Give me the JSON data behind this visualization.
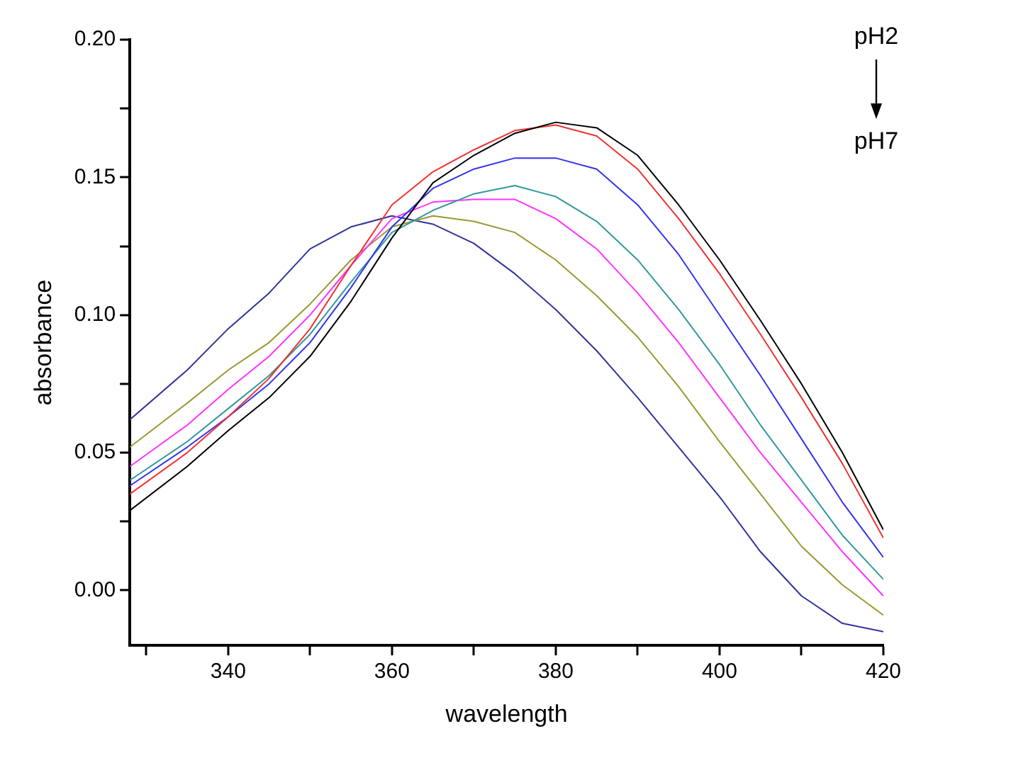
{
  "chart_data": {
    "type": "line",
    "xlabel": "wavelength",
    "ylabel": "absorbance",
    "annotations": [
      "pH2",
      "pH7"
    ],
    "x": [
      328,
      335,
      340,
      345,
      350,
      355,
      360,
      365,
      370,
      375,
      380,
      385,
      390,
      395,
      400,
      405,
      410,
      415,
      420
    ],
    "xlim": [
      328,
      420
    ],
    "xticks": [
      {
        "value": 330,
        "label": null
      },
      340,
      {
        "value": 350,
        "label": null
      },
      360,
      {
        "value": 370,
        "label": null
      },
      380,
      {
        "value": 390,
        "label": null
      },
      400,
      {
        "value": 410,
        "label": null
      },
      420
    ],
    "ylim": [
      -0.02,
      0.2
    ],
    "yticks": [
      {
        "value": 0,
        "label": "0.00"
      },
      {
        "value": 0.025,
        "label": null
      },
      {
        "value": 0.05,
        "label": "0.05"
      },
      {
        "value": 0.075,
        "label": null
      },
      {
        "value": 0.1,
        "label": "0.10"
      },
      {
        "value": 0.125,
        "label": null
      },
      {
        "value": 0.15,
        "label": "0.15"
      },
      {
        "value": 0.175,
        "label": null
      },
      {
        "value": 0.2,
        "label": "0.20"
      }
    ],
    "grid": false,
    "legend": false,
    "marker": "none",
    "line_style": "solid",
    "series": [
      {
        "color": "#000000",
        "values": [
          0.029,
          0.045,
          0.058,
          0.07,
          0.085,
          0.105,
          0.128,
          0.148,
          0.158,
          0.166,
          0.17,
          0.168,
          0.158,
          0.14,
          0.12,
          0.098,
          0.075,
          0.05,
          0.022
        ]
      },
      {
        "color": "#ee3333",
        "values": [
          0.035,
          0.05,
          0.063,
          0.077,
          0.095,
          0.118,
          0.14,
          0.152,
          0.16,
          0.167,
          0.169,
          0.165,
          0.153,
          0.135,
          0.115,
          0.093,
          0.07,
          0.046,
          0.019
        ]
      },
      {
        "color": "#3333ee",
        "values": [
          0.038,
          0.052,
          0.063,
          0.075,
          0.09,
          0.11,
          0.132,
          0.146,
          0.153,
          0.157,
          0.157,
          0.153,
          0.14,
          0.122,
          0.1,
          0.078,
          0.055,
          0.032,
          0.012
        ]
      },
      {
        "color": "#339999",
        "values": [
          0.04,
          0.054,
          0.066,
          0.078,
          0.093,
          0.112,
          0.13,
          0.138,
          0.144,
          0.147,
          0.143,
          0.134,
          0.12,
          0.102,
          0.082,
          0.06,
          0.04,
          0.02,
          0.004
        ]
      },
      {
        "color": "#ff33ff",
        "values": [
          0.045,
          0.06,
          0.073,
          0.085,
          0.1,
          0.118,
          0.135,
          0.141,
          0.142,
          0.142,
          0.135,
          0.124,
          0.108,
          0.09,
          0.07,
          0.05,
          0.032,
          0.014,
          -0.002
        ]
      },
      {
        "color": "#999933",
        "values": [
          0.052,
          0.068,
          0.08,
          0.09,
          0.104,
          0.12,
          0.132,
          0.136,
          0.134,
          0.13,
          0.12,
          0.107,
          0.092,
          0.074,
          0.054,
          0.035,
          0.016,
          0.002,
          -0.009
        ]
      },
      {
        "color": "#333399",
        "values": [
          0.062,
          0.08,
          0.095,
          0.108,
          0.124,
          0.132,
          0.136,
          0.133,
          0.126,
          0.115,
          0.102,
          0.087,
          0.07,
          0.052,
          0.034,
          0.014,
          -0.002,
          -0.012,
          -0.015
        ]
      }
    ]
  }
}
